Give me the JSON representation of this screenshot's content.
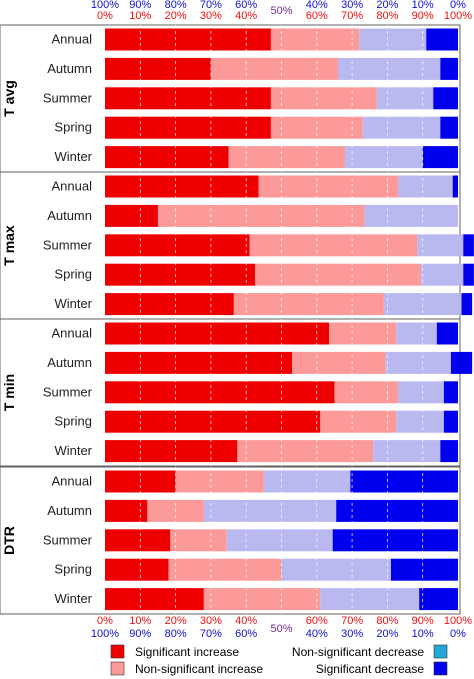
{
  "chart_data": {
    "type": "bar",
    "stacked": true,
    "orientation": "horizontal",
    "xlim": [
      0,
      100
    ],
    "grid": true,
    "legend_position": "bottom",
    "categories": [
      "Annual",
      "Autumn",
      "Summer",
      "Spring",
      "Winter"
    ],
    "panels": [
      {
        "label": "T avg",
        "values": [
          [
            47.0,
            25.0,
            19.0,
            9.0
          ],
          [
            30.0,
            36.0,
            29.0,
            5.0
          ],
          [
            47.0,
            30.0,
            16.0,
            7.0
          ],
          [
            47.0,
            26.0,
            22.0,
            5.0
          ],
          [
            35.0,
            33.0,
            22.0,
            10.0
          ]
        ]
      },
      {
        "label": "T max",
        "values": [
          [
            43.5,
            39.5,
            15.5,
            1.5
          ],
          [
            15.0,
            58.5,
            26.5,
            0.0
          ],
          [
            41.0,
            47.5,
            13.0,
            3.0
          ],
          [
            42.5,
            47.0,
            12.0,
            3.0
          ],
          [
            36.5,
            42.5,
            22.0,
            3.0
          ]
        ]
      },
      {
        "label": "T min",
        "values": [
          [
            63.5,
            19.0,
            11.5,
            6.0
          ],
          [
            53.0,
            26.5,
            18.5,
            6.0
          ],
          [
            65.0,
            18.0,
            13.0,
            4.0
          ],
          [
            61.0,
            21.5,
            13.5,
            4.0
          ],
          [
            37.5,
            38.5,
            19.0,
            5.0
          ]
        ]
      },
      {
        "label": "DTR",
        "values": [
          [
            20.0,
            25.0,
            24.5,
            30.5
          ],
          [
            12.0,
            16.0,
            37.5,
            34.5
          ],
          [
            18.5,
            16.0,
            30.0,
            35.5
          ],
          [
            18.0,
            32.0,
            31.0,
            19.0
          ],
          [
            28.0,
            33.0,
            28.0,
            11.0
          ]
        ]
      }
    ],
    "axis_top_red": [
      "0%",
      "10%",
      "20%",
      "30%",
      "40%",
      "50%",
      "60%",
      "70%",
      "80%",
      "90%",
      "100%"
    ],
    "axis_top_blue": [
      "100%",
      "90%",
      "80%",
      "70%",
      "60%",
      "50%",
      "40%",
      "30%",
      "20%",
      "10%",
      "0%"
    ],
    "axis_bottom_red": [
      "0%",
      "10%",
      "20%",
      "30%",
      "40%",
      "50%",
      "60%",
      "70%",
      "80%",
      "90%",
      "100%"
    ],
    "axis_bottom_blue": [
      "100%",
      "90%",
      "80%",
      "70%",
      "60%",
      "50%",
      "40%",
      "30%",
      "20%",
      "10%",
      "0%"
    ],
    "middle_tick": "50%",
    "series": [
      {
        "name": "Significant increase",
        "color": "#ee0000"
      },
      {
        "name": "Non-significant increase",
        "color": "#fc9a9a"
      },
      {
        "name": "Non-significant decrease",
        "color": "#b9b9ef"
      },
      {
        "name": "Significant decrease",
        "color": "#0000ee"
      }
    ],
    "legend": [
      {
        "name": "Significant increase",
        "color": "#ee0000"
      },
      {
        "name": "Non-significant increase",
        "color": "#fc9a9a"
      },
      {
        "name": "Non-significant decrease",
        "color": "#22a7d6"
      },
      {
        "name": "Significant decrease",
        "color": "#0000ee"
      }
    ],
    "colors": {
      "red_axis": "#ee1111",
      "blue_axis": "#1111cc",
      "middle_axis": "#7a2a8a"
    }
  }
}
